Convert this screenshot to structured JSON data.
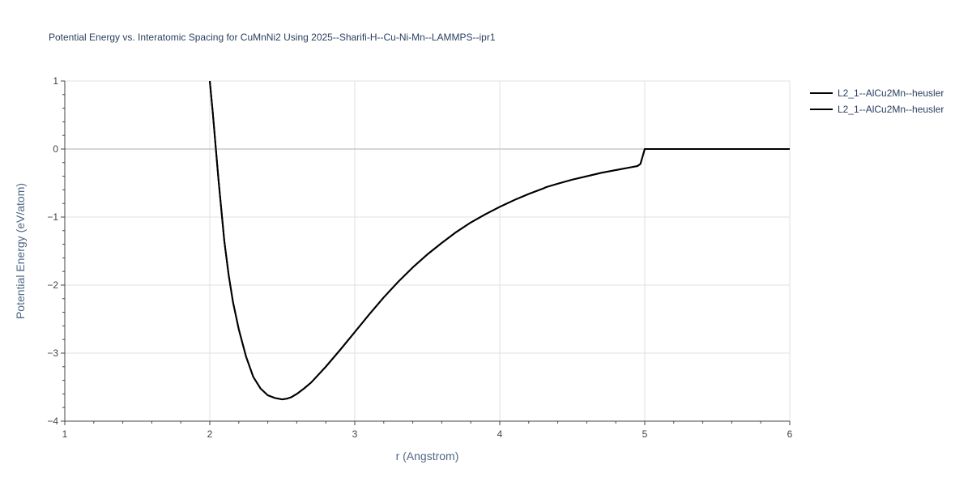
{
  "chart_data": {
    "type": "line",
    "title": "Potential Energy vs. Interatomic Spacing for CuMnNi2 Using 2025--Sharifi-H--Cu-Ni-Mn--LAMMPS--ipr1",
    "xlabel": "r (Angstrom)",
    "ylabel": "Potential Energy (eV/atom)",
    "xlim": [
      1,
      6
    ],
    "ylim": [
      -4,
      1
    ],
    "x_ticks": [
      "1",
      "2",
      "3",
      "4",
      "5",
      "6"
    ],
    "y_ticks": [
      "1",
      "0",
      "−1",
      "−2",
      "−3",
      "−4"
    ],
    "grid": true,
    "legend_position": "top-right",
    "line_color": "#000000",
    "series": [
      {
        "name": "L2_1--AlCu2Mn--heusler",
        "x": [
          2.0,
          2.02,
          2.04,
          2.06,
          2.08,
          2.1,
          2.13,
          2.16,
          2.2,
          2.25,
          2.3,
          2.35,
          2.4,
          2.45,
          2.5,
          2.53,
          2.56,
          2.6,
          2.65,
          2.7,
          2.8,
          2.9,
          3.0,
          3.1,
          3.2,
          3.3,
          3.4,
          3.5,
          3.6,
          3.7,
          3.8,
          3.9,
          4.0,
          4.1,
          4.2,
          4.3,
          4.32,
          4.4,
          4.5,
          4.6,
          4.7,
          4.8,
          4.9,
          4.95,
          4.97,
          5.0,
          5.2,
          5.5,
          6.0
        ],
        "y": [
          1.0,
          0.55,
          0.05,
          -0.45,
          -0.9,
          -1.35,
          -1.85,
          -2.25,
          -2.65,
          -3.05,
          -3.35,
          -3.52,
          -3.62,
          -3.66,
          -3.68,
          -3.67,
          -3.65,
          -3.6,
          -3.52,
          -3.43,
          -3.2,
          -2.95,
          -2.69,
          -2.43,
          -2.18,
          -1.95,
          -1.74,
          -1.55,
          -1.38,
          -1.22,
          -1.08,
          -0.96,
          -0.85,
          -0.75,
          -0.66,
          -0.58,
          -0.56,
          -0.51,
          -0.45,
          -0.4,
          -0.35,
          -0.31,
          -0.27,
          -0.25,
          -0.22,
          0.0,
          0.0,
          0.0,
          0.0
        ]
      },
      {
        "name": "L2_1--AlCu2Mn--heusler",
        "x": [
          2.0,
          2.02,
          2.04,
          2.06,
          2.08,
          2.1,
          2.13,
          2.16,
          2.2,
          2.25,
          2.3,
          2.35,
          2.4,
          2.45,
          2.5,
          2.53,
          2.56,
          2.6,
          2.65,
          2.7,
          2.8,
          2.9,
          3.0,
          3.1,
          3.2,
          3.3,
          3.4,
          3.5,
          3.6,
          3.7,
          3.8,
          3.9,
          4.0,
          4.1,
          4.2,
          4.3,
          4.32,
          4.4,
          4.5,
          4.6,
          4.7,
          4.8,
          4.9,
          4.95,
          4.97,
          5.0,
          5.2,
          5.5,
          6.0
        ],
        "y": [
          1.0,
          0.55,
          0.05,
          -0.45,
          -0.9,
          -1.35,
          -1.85,
          -2.25,
          -2.65,
          -3.05,
          -3.35,
          -3.52,
          -3.62,
          -3.66,
          -3.68,
          -3.67,
          -3.65,
          -3.6,
          -3.52,
          -3.43,
          -3.2,
          -2.95,
          -2.69,
          -2.43,
          -2.18,
          -1.95,
          -1.74,
          -1.55,
          -1.38,
          -1.22,
          -1.08,
          -0.96,
          -0.85,
          -0.75,
          -0.66,
          -0.58,
          -0.56,
          -0.51,
          -0.45,
          -0.4,
          -0.35,
          -0.31,
          -0.27,
          -0.25,
          -0.22,
          0.0,
          0.0,
          0.0,
          0.0
        ]
      }
    ]
  }
}
